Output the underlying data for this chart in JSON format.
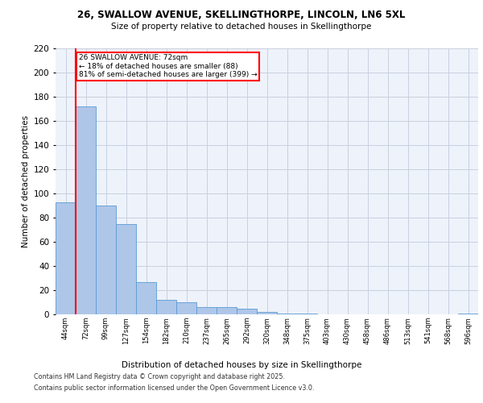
{
  "title1": "26, SWALLOW AVENUE, SKELLINGTHORPE, LINCOLN, LN6 5XL",
  "title2": "Size of property relative to detached houses in Skellingthorpe",
  "xlabel": "Distribution of detached houses by size in Skellingthorpe",
  "ylabel": "Number of detached properties",
  "categories": [
    "44sqm",
    "72sqm",
    "99sqm",
    "127sqm",
    "154sqm",
    "182sqm",
    "210sqm",
    "237sqm",
    "265sqm",
    "292sqm",
    "320sqm",
    "348sqm",
    "375sqm",
    "403sqm",
    "430sqm",
    "458sqm",
    "486sqm",
    "513sqm",
    "541sqm",
    "568sqm",
    "596sqm"
  ],
  "values": [
    93,
    172,
    90,
    75,
    27,
    12,
    10,
    6,
    6,
    5,
    2,
    1,
    1,
    0,
    0,
    0,
    0,
    0,
    0,
    0,
    1
  ],
  "bar_color": "#aec6e8",
  "bar_edge_color": "#5b9bd5",
  "red_line_index": 1,
  "annotation_text": "26 SWALLOW AVENUE: 72sqm\n← 18% of detached houses are smaller (88)\n81% of semi-detached houses are larger (399) →",
  "annotation_box_color": "white",
  "annotation_box_edge": "red",
  "ylim": [
    0,
    220
  ],
  "yticks": [
    0,
    20,
    40,
    60,
    80,
    100,
    120,
    140,
    160,
    180,
    200,
    220
  ],
  "footer1": "Contains HM Land Registry data © Crown copyright and database right 2025.",
  "footer2": "Contains public sector information licensed under the Open Government Licence v3.0.",
  "bg_color": "#eef2fa",
  "grid_color": "#c8d0e0"
}
